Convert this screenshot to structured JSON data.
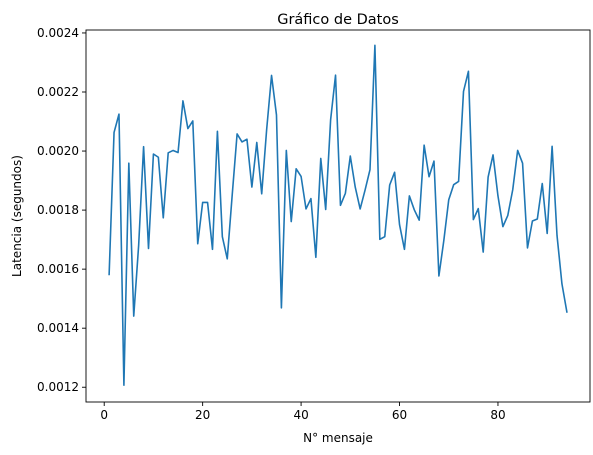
{
  "chart_data": {
    "type": "line",
    "title": "Gráfico de Datos",
    "xlabel": "N° mensaje",
    "ylabel": "Latencia (segundos)",
    "xlim": [
      -3.7,
      98.7
    ],
    "ylim": [
      0.00115,
      0.00241
    ],
    "xticks": [
      0,
      20,
      40,
      60,
      80
    ],
    "xtick_labels": [
      "0",
      "20",
      "40",
      "60",
      "80"
    ],
    "yticks": [
      0.0012,
      0.0014,
      0.0016,
      0.0018,
      0.002,
      0.0022,
      0.0024
    ],
    "ytick_labels": [
      "0.0012",
      "0.0014",
      "0.0016",
      "0.0018",
      "0.0020",
      "0.0022",
      "0.0024"
    ],
    "grid": false,
    "series": [
      {
        "color": "#1f77b4",
        "x": [
          1,
          2,
          3,
          4,
          5,
          6,
          7,
          8,
          9,
          10,
          11,
          12,
          13,
          14,
          15,
          16,
          17,
          18,
          19,
          20,
          21,
          22,
          23,
          24,
          25,
          26,
          27,
          28,
          29,
          30,
          31,
          32,
          33,
          34,
          35,
          36,
          37,
          38,
          39,
          40,
          41,
          42,
          43,
          44,
          45,
          46,
          47,
          48,
          49,
          50,
          51,
          52,
          53,
          54,
          55,
          56,
          57,
          58,
          59,
          60,
          61,
          62,
          63,
          64,
          65,
          66,
          67,
          68,
          69,
          70,
          71,
          72,
          73,
          74,
          75,
          76,
          77,
          78,
          79,
          80,
          81,
          82,
          83,
          84,
          85,
          86,
          87,
          88,
          89,
          90,
          91,
          92,
          93,
          94
        ],
        "y": [
          0.001582,
          0.002063,
          0.002125,
          0.001207,
          0.001959,
          0.001441,
          0.001681,
          0.002015,
          0.00167,
          0.00199,
          0.001979,
          0.001774,
          0.001994,
          0.002002,
          0.001995,
          0.00217,
          0.002076,
          0.002102,
          0.001686,
          0.001826,
          0.001826,
          0.001667,
          0.002067,
          0.00171,
          0.001635,
          0.00185,
          0.002058,
          0.002031,
          0.00204,
          0.001878,
          0.002029,
          0.001855,
          0.002072,
          0.002256,
          0.002122,
          0.001469,
          0.002002,
          0.001761,
          0.00194,
          0.001914,
          0.001804,
          0.001839,
          0.00164,
          0.001975,
          0.001802,
          0.002106,
          0.002257,
          0.001816,
          0.001857,
          0.001983,
          0.001878,
          0.001804,
          0.001868,
          0.001937,
          0.002358,
          0.001701,
          0.00171,
          0.001885,
          0.001928,
          0.001751,
          0.001667,
          0.001848,
          0.001801,
          0.001766,
          0.00202,
          0.001913,
          0.001966,
          0.001577,
          0.001697,
          0.001835,
          0.001886,
          0.001897,
          0.002202,
          0.00227,
          0.001768,
          0.001805,
          0.001658,
          0.001912,
          0.001987,
          0.001848,
          0.001744,
          0.001782,
          0.001869,
          0.002002,
          0.001959,
          0.001672,
          0.001763,
          0.00177,
          0.00189,
          0.001721,
          0.002016,
          0.001714,
          0.00155,
          0.001455
        ]
      }
    ]
  }
}
